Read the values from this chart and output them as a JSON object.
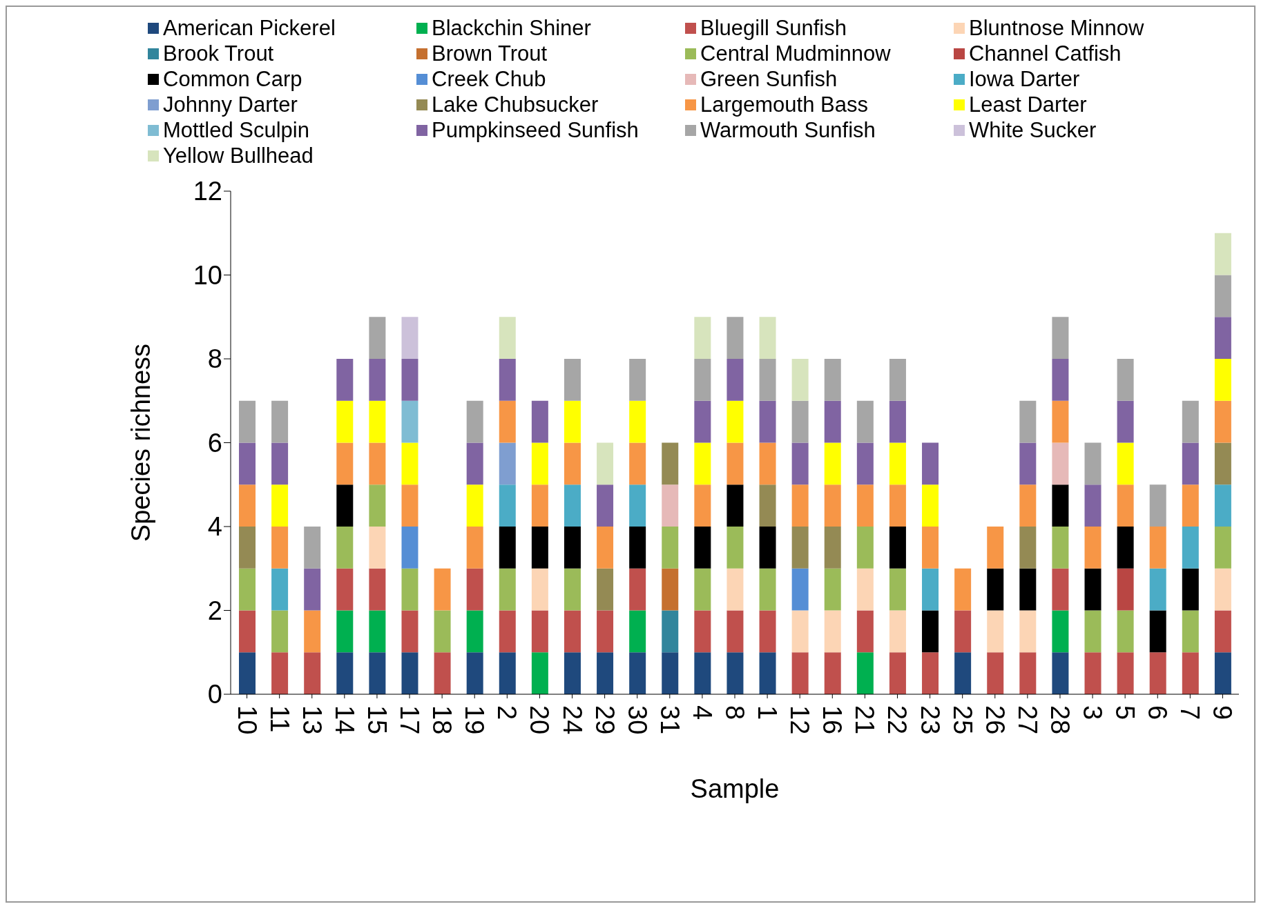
{
  "chart_data": {
    "type": "bar",
    "stacked": true,
    "xlabel": "Sample",
    "ylabel": "Species richness",
    "ylim": [
      0,
      12
    ],
    "yticks": [
      0,
      2,
      4,
      6,
      8,
      10,
      12
    ],
    "grid": false,
    "legend": "top",
    "categories": [
      "10",
      "11",
      "13",
      "14",
      "15",
      "17",
      "18",
      "19",
      "2",
      "20",
      "24",
      "29",
      "30",
      "31",
      "4",
      "8",
      "1",
      "12",
      "16",
      "21",
      "22",
      "23",
      "25",
      "26",
      "27",
      "28",
      "3",
      "5",
      "6",
      "7",
      "9"
    ],
    "series": [
      {
        "name": "American Pickerel",
        "color": "#1f497d",
        "values": [
          1,
          0,
          0,
          1,
          1,
          1,
          0,
          1,
          1,
          0,
          1,
          1,
          1,
          1,
          1,
          1,
          1,
          0,
          0,
          0,
          0,
          0,
          1,
          0,
          0,
          1,
          0,
          0,
          0,
          0,
          1
        ]
      },
      {
        "name": "Blackchin Shiner",
        "color": "#00b050",
        "values": [
          0,
          0,
          0,
          1,
          1,
          0,
          0,
          1,
          0,
          1,
          0,
          0,
          1,
          0,
          0,
          0,
          0,
          0,
          0,
          1,
          0,
          0,
          0,
          0,
          0,
          1,
          0,
          0,
          0,
          0,
          0
        ]
      },
      {
        "name": "Bluegill Sunfish",
        "color": "#c0504d",
        "values": [
          1,
          1,
          1,
          1,
          1,
          1,
          1,
          1,
          1,
          1,
          1,
          1,
          1,
          0,
          1,
          1,
          1,
          1,
          1,
          1,
          1,
          1,
          1,
          1,
          1,
          1,
          1,
          1,
          1,
          1,
          1
        ]
      },
      {
        "name": "Bluntnose Minnow",
        "color": "#fcd5b5",
        "values": [
          0,
          0,
          0,
          0,
          1,
          0,
          0,
          0,
          0,
          1,
          0,
          0,
          0,
          0,
          0,
          1,
          0,
          1,
          1,
          1,
          1,
          0,
          0,
          1,
          1,
          0,
          0,
          0,
          0,
          0,
          1
        ]
      },
      {
        "name": "Brook Trout",
        "color": "#31859c",
        "values": [
          0,
          0,
          0,
          0,
          0,
          0,
          0,
          0,
          0,
          0,
          0,
          0,
          0,
          1,
          0,
          0,
          0,
          0,
          0,
          0,
          0,
          0,
          0,
          0,
          0,
          0,
          0,
          0,
          0,
          0,
          0
        ]
      },
      {
        "name": "Brown Trout",
        "color": "#c5702f",
        "values": [
          0,
          0,
          0,
          0,
          0,
          0,
          0,
          0,
          0,
          0,
          0,
          0,
          0,
          1,
          0,
          0,
          0,
          0,
          0,
          0,
          0,
          0,
          0,
          0,
          0,
          0,
          0,
          0,
          0,
          0,
          0
        ]
      },
      {
        "name": "Central Mudminnow",
        "color": "#9bbb59",
        "values": [
          1,
          1,
          0,
          1,
          1,
          1,
          1,
          0,
          1,
          0,
          1,
          0,
          0,
          1,
          1,
          1,
          1,
          0,
          1,
          1,
          1,
          0,
          0,
          0,
          0,
          1,
          1,
          1,
          0,
          1,
          1
        ]
      },
      {
        "name": "Channel Catfish",
        "color": "#b94643",
        "values": [
          0,
          0,
          0,
          0,
          0,
          0,
          0,
          0,
          0,
          0,
          0,
          0,
          0,
          0,
          0,
          0,
          0,
          0,
          0,
          0,
          0,
          0,
          0,
          0,
          0,
          0,
          0,
          1,
          0,
          0,
          0
        ]
      },
      {
        "name": "Common Carp",
        "color": "#000000",
        "values": [
          0,
          0,
          0,
          1,
          0,
          0,
          0,
          0,
          1,
          1,
          1,
          0,
          1,
          0,
          1,
          1,
          1,
          0,
          0,
          0,
          1,
          1,
          0,
          1,
          1,
          1,
          1,
          1,
          1,
          1,
          0
        ]
      },
      {
        "name": "Creek Chub",
        "color": "#558ed5",
        "values": [
          0,
          0,
          0,
          0,
          0,
          1,
          0,
          0,
          0,
          0,
          0,
          0,
          0,
          0,
          0,
          0,
          0,
          1,
          0,
          0,
          0,
          0,
          0,
          0,
          0,
          0,
          0,
          0,
          0,
          0,
          0
        ]
      },
      {
        "name": "Green Sunfish",
        "color": "#e6b9b8",
        "values": [
          0,
          0,
          0,
          0,
          0,
          0,
          0,
          0,
          0,
          0,
          0,
          0,
          0,
          1,
          0,
          0,
          0,
          0,
          0,
          0,
          0,
          0,
          0,
          0,
          0,
          1,
          0,
          0,
          0,
          0,
          0
        ]
      },
      {
        "name": "Iowa Darter",
        "color": "#4bacc6",
        "values": [
          0,
          1,
          0,
          0,
          0,
          0,
          0,
          0,
          1,
          0,
          1,
          0,
          1,
          0,
          0,
          0,
          0,
          0,
          0,
          0,
          0,
          1,
          0,
          0,
          0,
          0,
          0,
          0,
          1,
          1,
          1
        ]
      },
      {
        "name": "Johnny Darter",
        "color": "#7f9ed0",
        "values": [
          0,
          0,
          0,
          0,
          0,
          0,
          0,
          0,
          1,
          0,
          0,
          0,
          0,
          0,
          0,
          0,
          0,
          0,
          0,
          0,
          0,
          0,
          0,
          0,
          0,
          0,
          0,
          0,
          0,
          0,
          0
        ]
      },
      {
        "name": "Lake Chubsucker",
        "color": "#948a54",
        "values": [
          1,
          0,
          0,
          0,
          0,
          0,
          0,
          0,
          0,
          0,
          0,
          1,
          0,
          1,
          0,
          0,
          1,
          1,
          1,
          0,
          0,
          0,
          0,
          0,
          1,
          0,
          0,
          0,
          0,
          0,
          1
        ]
      },
      {
        "name": "Largemouth Bass",
        "color": "#f79646",
        "values": [
          1,
          1,
          1,
          1,
          1,
          1,
          1,
          1,
          1,
          1,
          1,
          1,
          1,
          0,
          1,
          1,
          1,
          1,
          1,
          1,
          1,
          1,
          1,
          1,
          1,
          1,
          1,
          1,
          1,
          1,
          1
        ]
      },
      {
        "name": "Least Darter",
        "color": "#ffff00",
        "values": [
          0,
          1,
          0,
          1,
          1,
          1,
          0,
          1,
          0,
          1,
          1,
          0,
          1,
          0,
          1,
          1,
          0,
          0,
          1,
          0,
          1,
          1,
          0,
          0,
          0,
          0,
          0,
          1,
          0,
          0,
          1
        ]
      },
      {
        "name": "Mottled Sculpin",
        "color": "#7fbcd3",
        "values": [
          0,
          0,
          0,
          0,
          0,
          1,
          0,
          0,
          0,
          0,
          0,
          0,
          0,
          0,
          0,
          0,
          0,
          0,
          0,
          0,
          0,
          0,
          0,
          0,
          0,
          0,
          0,
          0,
          0,
          0,
          0
        ]
      },
      {
        "name": "Pumpkinseed Sunfish",
        "color": "#8064a2",
        "values": [
          1,
          1,
          1,
          1,
          1,
          1,
          0,
          1,
          1,
          1,
          0,
          1,
          0,
          0,
          1,
          1,
          1,
          1,
          1,
          1,
          1,
          1,
          0,
          0,
          1,
          1,
          1,
          1,
          0,
          1,
          1
        ]
      },
      {
        "name": "Warmouth Sunfish",
        "color": "#a6a6a6",
        "values": [
          1,
          1,
          1,
          0,
          1,
          0,
          0,
          1,
          0,
          0,
          1,
          0,
          1,
          0,
          1,
          1,
          1,
          1,
          1,
          1,
          1,
          0,
          0,
          0,
          1,
          1,
          1,
          1,
          1,
          1,
          1
        ]
      },
      {
        "name": "White Sucker",
        "color": "#ccc1da",
        "values": [
          0,
          0,
          0,
          0,
          0,
          1,
          0,
          0,
          0,
          0,
          0,
          0,
          0,
          0,
          0,
          0,
          0,
          0,
          0,
          0,
          0,
          0,
          0,
          0,
          0,
          0,
          0,
          0,
          0,
          0,
          0
        ]
      },
      {
        "name": "Yellow Bullhead",
        "color": "#d7e4bd",
        "values": [
          0,
          0,
          0,
          0,
          0,
          0,
          0,
          0,
          1,
          0,
          0,
          1,
          0,
          0,
          1,
          0,
          1,
          1,
          0,
          0,
          0,
          0,
          0,
          0,
          0,
          0,
          0,
          0,
          0,
          0,
          1
        ]
      }
    ]
  }
}
